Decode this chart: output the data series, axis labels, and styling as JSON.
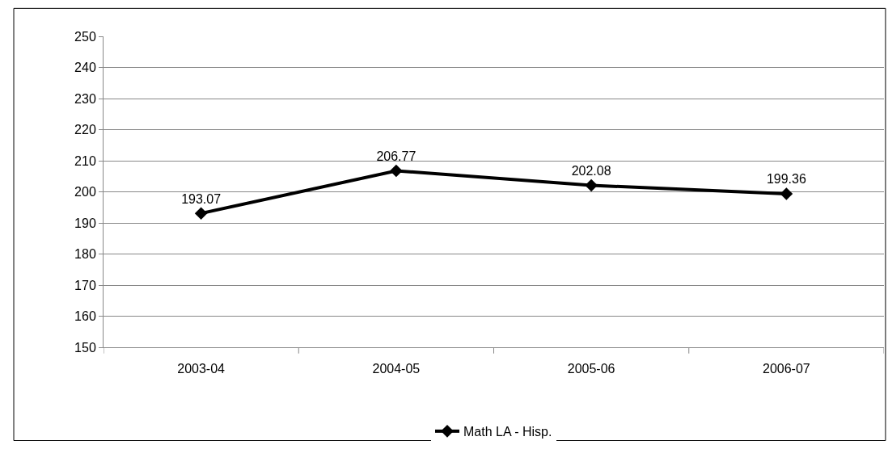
{
  "chart_data": {
    "type": "line",
    "categories": [
      "2003-04",
      "2004-05",
      "2005-06",
      "2006-07"
    ],
    "series": [
      {
        "name": "Math LA - Hisp.",
        "color": "#000000",
        "values": [
          193.07,
          206.77,
          202.08,
          199.36
        ]
      }
    ],
    "ylim": [
      150,
      250
    ],
    "yticks": [
      150,
      160,
      170,
      180,
      190,
      200,
      210,
      220,
      230,
      240,
      250
    ],
    "grid": "y",
    "legend": "bottom",
    "marker": "diamond",
    "line_style": "solid",
    "data_labels": true
  }
}
